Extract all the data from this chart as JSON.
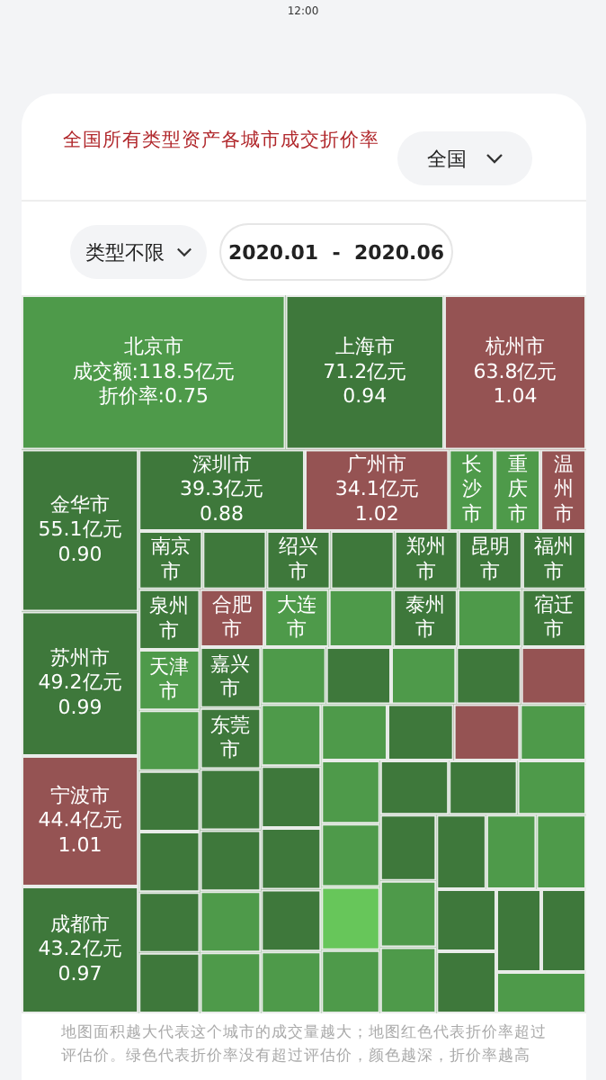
{
  "chart_data": {
    "type": "other",
    "title": "全国所有类型资产各城市成交折价率",
    "annotations": [
      "12:00",
      "全国",
      "类型不限",
      "2020.01  -  2020.06",
      "地图面积越大代表这个城市的成交量越大；地图红色代表折价率超过评估价。绿色代表折价率没有超过评估价，颜色越深，折价率越高"
    ],
    "categories": [
      "北京市",
      "上海市",
      "杭州市",
      "金华市",
      "苏州市",
      "宁波市",
      "成都市",
      "深圳市",
      "广州市",
      "长沙市",
      "重庆市",
      "温州市",
      "南京市",
      null,
      "绍兴市",
      null,
      "郑州市",
      "昆明市",
      "福州市",
      "泉州市",
      "天津市",
      null,
      null,
      null,
      null,
      null,
      "合肥市",
      "大连市",
      null,
      "泰州市",
      null,
      "宿迁市",
      "嘉兴市",
      "东莞市",
      null,
      null,
      null,
      null,
      null,
      null,
      null,
      null,
      null,
      null,
      null,
      null,
      null,
      null,
      null,
      null,
      null,
      null,
      null,
      null,
      null,
      null,
      null,
      null,
      null,
      null,
      null,
      null,
      null,
      null,
      null,
      null,
      null,
      null,
      null,
      null
    ],
    "values": [
      118.5,
      71.2,
      63.8,
      55.1,
      49.2,
      44.4,
      43.2,
      39.3,
      34.1,
      null,
      null,
      null,
      null,
      null,
      null,
      null,
      null,
      null,
      null,
      null,
      null,
      null,
      null,
      null,
      null,
      null,
      null,
      null,
      null,
      null,
      null,
      null,
      null,
      null,
      null,
      null,
      null,
      null,
      null,
      null,
      null,
      null,
      null,
      null,
      null,
      null,
      null,
      null,
      null,
      null,
      null,
      null,
      null,
      null,
      null,
      null,
      null,
      null,
      null,
      null,
      null,
      null,
      null,
      null,
      null,
      null,
      null,
      null,
      null,
      null
    ],
    "value_labels": [
      "成交额:118.5亿元折价率:0.75",
      "71.2亿元\n0.94",
      "63.8亿元\n1.04",
      "55.1亿元\n0.90",
      "49.2亿元\n0.99",
      "44.4亿元\n1.01",
      "43.2亿元\n0.97",
      "39.3亿元\n0.88",
      "34.1亿元\n1.02",
      null,
      null,
      null,
      null,
      null,
      null,
      null,
      null,
      null,
      null,
      null,
      null,
      null,
      null,
      null,
      null,
      null,
      null,
      null,
      null,
      null,
      null,
      null,
      null,
      null,
      null,
      null,
      null,
      null,
      null,
      null,
      null,
      null,
      null,
      null,
      null,
      null,
      null,
      null,
      null,
      null,
      null,
      null,
      null,
      null,
      null,
      null,
      null,
      null,
      null,
      null,
      null,
      null,
      null,
      null,
      null,
      null,
      null,
      null,
      null,
      null
    ],
    "colors": [
      "#4e9a4a",
      "#3e783b",
      "#955353",
      "#3e783b",
      "#3e783b",
      "#955353",
      "#3e783b",
      "#3e783b",
      "#955353",
      "#4e9a4a",
      "#4e9a4a",
      "#955353",
      "#3e783b",
      "#3e783b",
      "#3e783b",
      "#3e783b",
      "#3e783b",
      "#3e783b",
      "#3e783b",
      "#3e783b",
      "#4e9a4a",
      "#4e9a4a",
      "#3e783b",
      "#3e783b",
      "#3e783b",
      "#3e783b",
      "#955353",
      "#4e9a4a",
      "#4e9a4a",
      "#3e783b",
      "#4e9a4a",
      "#3e783b",
      "#3e783b",
      "#3e783b",
      "#3e783b",
      "#3e783b",
      "#4e9a4a",
      "#4e9a4a",
      "#4e9a4a",
      "#3e783b",
      "#4e9a4a",
      "#3e783b",
      "#955353",
      "#4e9a4a",
      "#3e783b",
      "#3e783b",
      "#3e783b",
      "#4e9a4a",
      "#4e9a4a",
      "#3e783b",
      "#955353",
      "#4e9a4a",
      "#4e9a4a",
      "#4e9a4a",
      "#67c65a",
      "#4e9a4a",
      "#3e783b",
      "#3e783b",
      "#4e9a4a",
      "#3e783b",
      "#4e9a4a",
      "#4e9a4a",
      "#3e783b",
      "#4e9a4a",
      "#4e9a4a",
      "#3e783b",
      "#3e783b",
      "#3e783b",
      "#3e783b",
      "#4e9a4a"
    ]
  }
}
